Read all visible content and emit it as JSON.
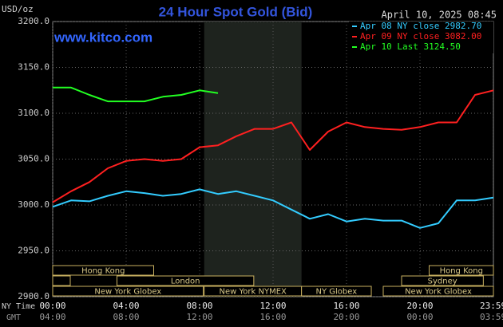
{
  "chart_data": {
    "type": "line",
    "title": "24 Hour Spot Gold (Bid)",
    "timestamp": "April 10, 2025 08:45",
    "unit_label": "USD/oz",
    "watermark": "www.kitco.com",
    "x_row_label": "NY Time",
    "x2_row_label": "GMT",
    "x": [
      0,
      1,
      2,
      3,
      4,
      5,
      6,
      7,
      8,
      9,
      10,
      11,
      12,
      13,
      14,
      15,
      16,
      17,
      18,
      19,
      20,
      21,
      22,
      23,
      24
    ],
    "series": [
      {
        "name": "Apr 08 NY close 2982.70",
        "color": "#33ccff",
        "values": [
          2998,
          3005,
          3004,
          3010,
          3015,
          3013,
          3010,
          3012,
          3017,
          3012,
          3015,
          3010,
          3005,
          2995,
          2985,
          2990,
          2982,
          2985,
          2983,
          2983,
          2975,
          2980,
          3005,
          3005,
          3008
        ]
      },
      {
        "name": "Apr 09 NY close 3082.00",
        "color": "#ff2020",
        "values": [
          3003,
          3015,
          3025,
          3040,
          3048,
          3050,
          3048,
          3050,
          3063,
          3065,
          3075,
          3083,
          3083,
          3090,
          3060,
          3080,
          3090,
          3085,
          3083,
          3082,
          3085,
          3090,
          3090,
          3120,
          3125
        ]
      },
      {
        "name": "Apr 10 Last 3124.50",
        "color": "#22ff22",
        "values": [
          3128,
          3128,
          3120,
          3113,
          3113,
          3113,
          3118,
          3120,
          3125,
          3122,
          null,
          null,
          null,
          null,
          null,
          null,
          null,
          null,
          null,
          null,
          null,
          null,
          null,
          null,
          null
        ]
      }
    ],
    "xlim": [
      0,
      24
    ],
    "ylim": [
      2900,
      3200
    ],
    "yticks": [
      {
        "value": 2900,
        "label": "2900.0"
      },
      {
        "value": 2950,
        "label": "2950.0"
      },
      {
        "value": 3000,
        "label": "3000.0"
      },
      {
        "value": 3050,
        "label": "3050.0"
      },
      {
        "value": 3100,
        "label": "3100.0"
      },
      {
        "value": 3150,
        "label": "3150.0"
      },
      {
        "value": 3200,
        "label": "3200.0"
      }
    ],
    "xticks": [
      {
        "value": 0,
        "label": "00:00"
      },
      {
        "value": 4,
        "label": "04:00"
      },
      {
        "value": 8,
        "label": "08:00"
      },
      {
        "value": 12,
        "label": "12:00"
      },
      {
        "value": 16,
        "label": "16:00"
      },
      {
        "value": 20,
        "label": "20:00"
      },
      {
        "value": 23.98,
        "label": "23:59"
      }
    ],
    "x2ticks": [
      {
        "value": 0,
        "label": "04:00"
      },
      {
        "value": 4,
        "label": "08:00"
      },
      {
        "value": 8,
        "label": "12:00"
      },
      {
        "value": 12,
        "label": "16:00"
      },
      {
        "value": 16,
        "label": "20:00"
      },
      {
        "value": 20,
        "label": "00:00"
      },
      {
        "value": 23.98,
        "label": "03:59"
      }
    ],
    "grid": true,
    "sessions": [
      {
        "label": "Hong Kong",
        "start": 0,
        "end": 5.5,
        "row": 0
      },
      {
        "label": "Hong Kong",
        "start": 20.5,
        "end": 24,
        "row": 0
      },
      {
        "label": "London",
        "start": 3.5,
        "end": 10.95,
        "row": 1
      },
      {
        "label": "Sydney",
        "start": 19.0,
        "end": 23.45,
        "row": 1
      },
      {
        "label": "New York Globex",
        "start": 0,
        "end": 8.2,
        "row": 2
      },
      {
        "label": "New York NYMEX",
        "start": 8.25,
        "end": 13.55,
        "row": 2,
        "shade": true
      },
      {
        "label": "NY Globex",
        "start": 13.55,
        "end": 17.35,
        "row": 2
      },
      {
        "label": "New York Globex",
        "start": 18.0,
        "end": 24,
        "row": 2
      }
    ]
  }
}
